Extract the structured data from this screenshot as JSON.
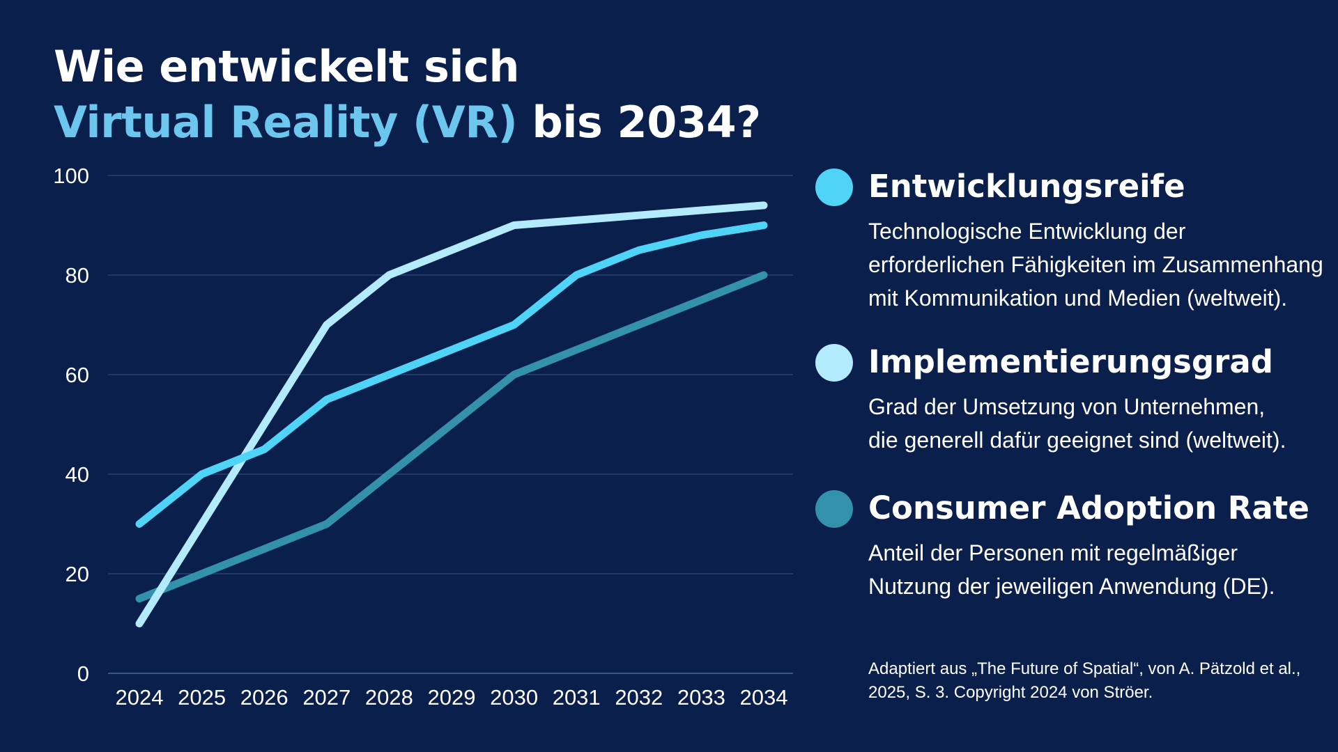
{
  "title": {
    "line1": "Wie entwickelt sich",
    "line2_accent": "Virtual Reality (VR)",
    "line2_rest": " bis 2034?"
  },
  "colors": {
    "background": "#0a1f4b",
    "gridline": "#2a4272",
    "axis": "#3c5688",
    "accent_title": "#6cc6ee"
  },
  "chart_data": {
    "type": "line",
    "title": "Wie entwickelt sich Virtual Reality (VR) bis 2034?",
    "xlabel": "",
    "ylabel": "",
    "x": [
      "2024",
      "2025",
      "2026",
      "2027",
      "2028",
      "2029",
      "2030",
      "2031",
      "2032",
      "2033",
      "2034"
    ],
    "ylim": [
      0,
      100
    ],
    "yticks": [
      0,
      20,
      40,
      60,
      80,
      100
    ],
    "grid": true,
    "legend_position": "right",
    "series": [
      {
        "name": "Entwicklungsreife",
        "color": "#4fd3f7",
        "values": [
          30,
          40,
          45,
          55,
          60,
          65,
          70,
          80,
          85,
          88,
          90
        ]
      },
      {
        "name": "Implementierungsgrad",
        "color": "#b3eafc",
        "values": [
          10,
          30,
          50,
          70,
          80,
          85,
          90,
          91,
          92,
          93,
          94
        ]
      },
      {
        "name": "Consumer Adoption Rate",
        "color": "#3491ab",
        "values": [
          15,
          20,
          25,
          30,
          40,
          50,
          60,
          65,
          70,
          75,
          80
        ]
      }
    ]
  },
  "legend": [
    {
      "title": "Entwicklungsreife",
      "color": "#4fd3f7",
      "desc": [
        "Technologische Entwicklung der",
        "erforderlichen Fähigkeiten im Zusammenhang",
        "mit Kommunikation und Medien (weltweit)."
      ]
    },
    {
      "title": "Implementierungsgrad",
      "color": "#b3eafc",
      "desc": [
        "Grad der Umsetzung von Unternehmen,",
        "die generell dafür geeignet sind (weltweit)."
      ]
    },
    {
      "title": "Consumer Adoption Rate",
      "color": "#3491ab",
      "desc": [
        "Anteil der Personen mit regelmäßiger",
        "Nutzung der jeweiligen Anwendung (DE)."
      ]
    }
  ],
  "source": {
    "line1": "Adaptiert aus „The Future of Spatial“, von A. Pätzold et al.,",
    "line2": "2025, S. 3. Copyright 2024 von Ströer."
  }
}
